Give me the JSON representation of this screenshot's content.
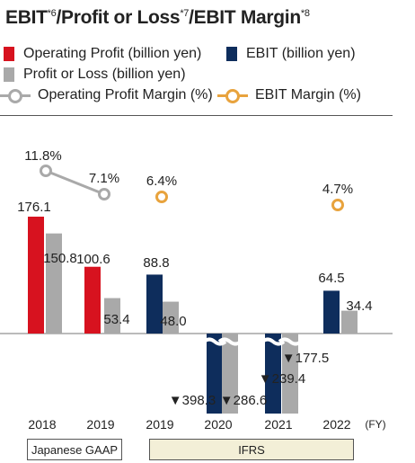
{
  "title": {
    "parts": [
      {
        "text": "EBIT",
        "sup": false
      },
      {
        "text": "*6",
        "sup": true
      },
      {
        "text": "/Profit or Loss",
        "sup": false
      },
      {
        "text": "*7",
        "sup": true
      },
      {
        "text": "/EBIT Margin",
        "sup": false
      },
      {
        "text": "*8",
        "sup": true
      }
    ]
  },
  "legend": {
    "operating_profit": "Operating Profit (billion yen)",
    "ebit": "EBIT (billion yen)",
    "profit_or_loss": "Profit or Loss (billion yen)",
    "operating_profit_margin": "Operating Profit Margin (%)",
    "ebit_margin": "EBIT Margin (%)"
  },
  "colors": {
    "operating_profit": "#d7121f",
    "ebit": "#0e2d5c",
    "profit_or_loss": "#a9a9a9",
    "operating_profit_margin": "#a9a9a9",
    "ebit_margin": "#e8a33d",
    "ifrs_box": "#f3efd7"
  },
  "era": {
    "jgaap": "Japanese GAAP",
    "ifrs": "IFRS"
  },
  "chart_data": {
    "type": "bar",
    "unit_label": "(FY)",
    "categories": [
      "2018",
      "2019",
      "2019",
      "2020",
      "2021",
      "2022"
    ],
    "series": [
      {
        "name": "Operating Profit (billion yen)",
        "kind": "bar",
        "color": "#d7121f",
        "values": [
          176.1,
          100.6,
          null,
          null,
          null,
          null
        ],
        "labels": [
          "176.1",
          "100.6",
          "",
          "",
          "",
          ""
        ]
      },
      {
        "name": "EBIT (billion yen)",
        "kind": "bar",
        "color": "#0e2d5c",
        "values": [
          null,
          null,
          88.8,
          -398.3,
          -239.4,
          64.5
        ],
        "labels": [
          "",
          "",
          "88.8",
          "▼398.3",
          "▼239.4",
          "64.5"
        ]
      },
      {
        "name": "Profit or Loss (billion yen)",
        "kind": "bar",
        "color": "#a9a9a9",
        "values": [
          150.8,
          53.4,
          48.0,
          -286.6,
          -177.5,
          34.4
        ],
        "labels": [
          "150.8",
          "53.4",
          "48.0",
          "▼286.6",
          "▼177.5",
          "34.4"
        ]
      },
      {
        "name": "Operating Profit Margin (%)",
        "kind": "line",
        "color": "#a9a9a9",
        "values": [
          11.8,
          7.1,
          null,
          null,
          null,
          null
        ],
        "labels": [
          "11.8%",
          "7.1%",
          "",
          "",
          "",
          ""
        ]
      },
      {
        "name": "EBIT Margin (%)",
        "kind": "marker",
        "color": "#e8a33d",
        "values": [
          null,
          null,
          6.4,
          null,
          null,
          4.7
        ],
        "labels": [
          "",
          "",
          "6.4%",
          "",
          "",
          "4.7%"
        ]
      }
    ],
    "axis_break": true
  }
}
